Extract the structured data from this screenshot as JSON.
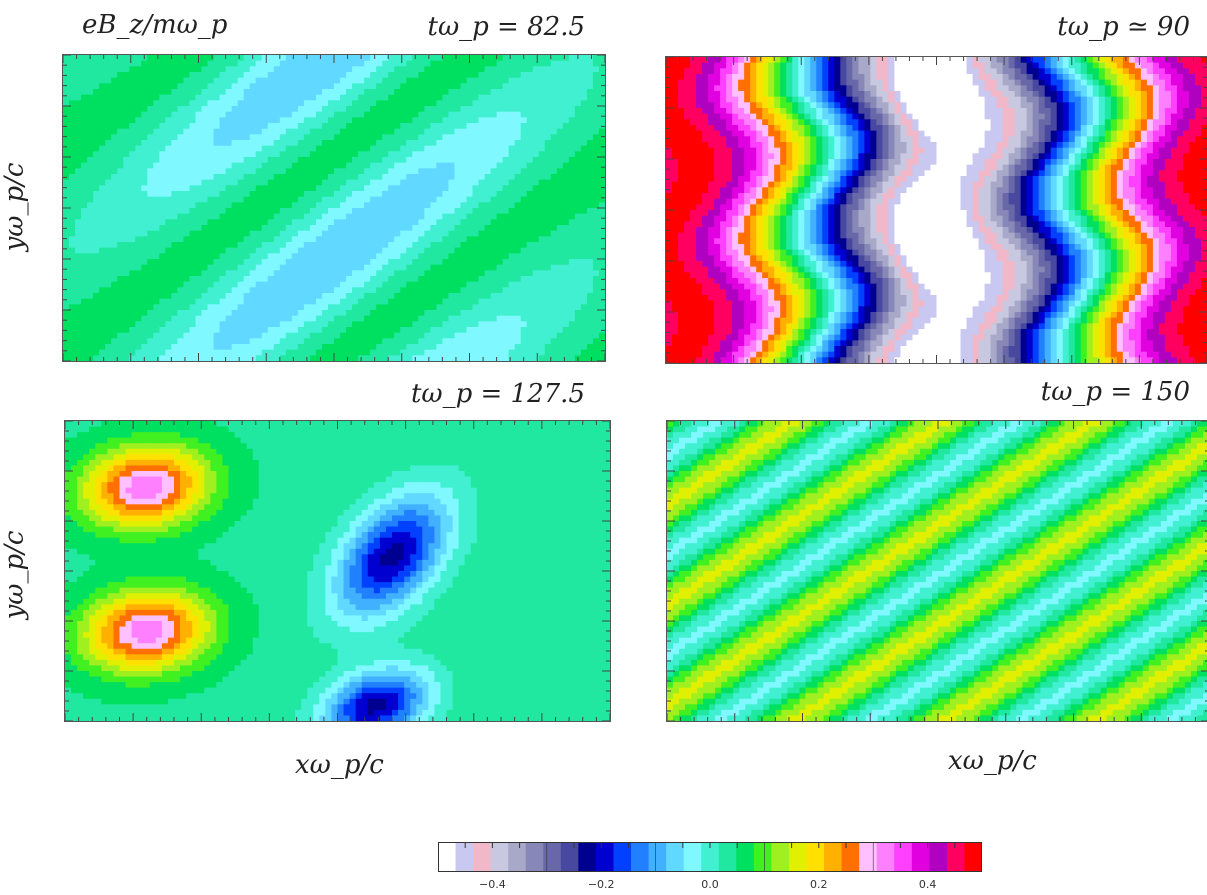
{
  "figure": {
    "field_label": "eB_z/mω_p",
    "y_axis_label": "yω_p/c",
    "y_axis_label_lower": "yω_p/c",
    "x_axis_label_left": "xω_p/c",
    "x_axis_label_right": "xω_p/c"
  },
  "panels": [
    {
      "time_label": "tω_p = 82.5"
    },
    {
      "time_label": "tω_p ≃ 90"
    },
    {
      "time_label": "tω_p = 127.5"
    },
    {
      "time_label": "tω_p = 150"
    }
  ],
  "chart_data": [
    {
      "type": "heatmap",
      "panel": "top-left",
      "title": "tω_p = 82.5",
      "xlabel": "",
      "ylabel": "yω_p/c",
      "description_of_pattern": "diagonal stripes of low amplitude",
      "value_range": [
        -0.15,
        0.15
      ]
    },
    {
      "type": "heatmap",
      "panel": "top-right",
      "title": "tω_p ≃ 90",
      "xlabel": "",
      "ylabel": "",
      "description_of_pattern": "vertical wavy bands, strong amplitude",
      "value_range": [
        -0.5,
        0.5
      ]
    },
    {
      "type": "heatmap",
      "panel": "bottom-left",
      "title": "tω_p = 127.5",
      "xlabel": "xω_p/c",
      "ylabel": "yω_p/c",
      "value_range": [
        -0.25,
        0.35
      ]
    },
    {
      "type": "heatmap",
      "panel": "bottom-right",
      "title": "tω_p = 150",
      "xlabel": "xω_p/c",
      "ylabel": "",
      "value_range": [
        -0.1,
        0.2
      ]
    },
    {
      "type": "colorbar",
      "range": [
        -0.5,
        0.5
      ],
      "tick_values": [
        -0.4,
        -0.2,
        0.0,
        0.2,
        0.4
      ],
      "tick_labels": [
        "−0.4",
        "−0.2",
        "0.0",
        "0.2",
        "0.4"
      ],
      "colors": [
        "#ffffff",
        "#c8c8f0",
        "#f0b8c8",
        "#c8c8e0",
        "#a8a8c8",
        "#8888b8",
        "#6868a8",
        "#4848a0",
        "#000090",
        "#0000d0",
        "#0040ff",
        "#2080ff",
        "#40b0ff",
        "#60d8ff",
        "#80f8ff",
        "#40f0d0",
        "#20e8a0",
        "#00e060",
        "#40f020",
        "#a0f020",
        "#e0f000",
        "#ffe000",
        "#ffb000",
        "#ff7000",
        "#ffc0ff",
        "#ff80ff",
        "#ff40ff",
        "#e000e0",
        "#b000c0",
        "#ff0060",
        "#ff0000"
      ]
    }
  ]
}
